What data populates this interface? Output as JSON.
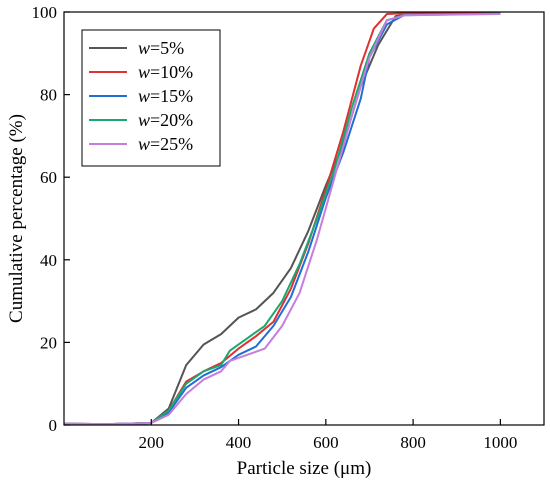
{
  "chart_data": {
    "type": "line",
    "xlabel": "Particle size (μm)",
    "ylabel": "Cumulative percentage (%)",
    "xlim": [
      0,
      1100
    ],
    "ylim": [
      0,
      100
    ],
    "x_ticks": [
      200,
      400,
      600,
      800,
      1000
    ],
    "y_ticks": [
      0,
      20,
      40,
      60,
      80,
      100
    ],
    "grid": false,
    "legend_position": "top-left",
    "series": [
      {
        "name_var": "w",
        "name_rest": "=5%",
        "color": "#555555",
        "points": [
          [
            0,
            0.3
          ],
          [
            100,
            0.2
          ],
          [
            200,
            0.5
          ],
          [
            240,
            4
          ],
          [
            280,
            14.5
          ],
          [
            320,
            19.5
          ],
          [
            360,
            22
          ],
          [
            400,
            26
          ],
          [
            440,
            28
          ],
          [
            480,
            32
          ],
          [
            520,
            38
          ],
          [
            560,
            47
          ],
          [
            600,
            58
          ],
          [
            640,
            68
          ],
          [
            680,
            82
          ],
          [
            720,
            92
          ],
          [
            760,
            99
          ],
          [
            800,
            99.6
          ],
          [
            1000,
            99.8
          ]
        ]
      },
      {
        "name_var": "w",
        "name_rest": "=10%",
        "color": "#e03030",
        "points": [
          [
            0,
            0.3
          ],
          [
            100,
            0.2
          ],
          [
            200,
            0.5
          ],
          [
            240,
            3.5
          ],
          [
            280,
            10.5
          ],
          [
            320,
            13
          ],
          [
            360,
            15
          ],
          [
            400,
            18.5
          ],
          [
            440,
            21.5
          ],
          [
            480,
            25
          ],
          [
            520,
            33
          ],
          [
            560,
            44
          ],
          [
            600,
            57
          ],
          [
            640,
            71
          ],
          [
            680,
            87
          ],
          [
            710,
            96
          ],
          [
            740,
            99.5
          ],
          [
            800,
            99.8
          ],
          [
            1000,
            99.8
          ]
        ]
      },
      {
        "name_var": "w",
        "name_rest": "=15%",
        "color": "#1f6fd6",
        "points": [
          [
            0,
            0.3
          ],
          [
            100,
            0.2
          ],
          [
            200,
            0.5
          ],
          [
            240,
            3
          ],
          [
            280,
            9
          ],
          [
            320,
            12
          ],
          [
            360,
            14
          ],
          [
            400,
            17
          ],
          [
            440,
            19
          ],
          [
            480,
            24
          ],
          [
            520,
            31
          ],
          [
            560,
            42
          ],
          [
            600,
            55
          ],
          [
            640,
            66
          ],
          [
            680,
            79
          ],
          [
            700,
            89
          ],
          [
            740,
            97
          ],
          [
            780,
            99.3
          ],
          [
            1000,
            99.6
          ]
        ]
      },
      {
        "name_var": "w",
        "name_rest": "=20%",
        "color": "#1aa870",
        "points": [
          [
            0,
            0.3
          ],
          [
            100,
            0.2
          ],
          [
            200,
            0.5
          ],
          [
            240,
            3.5
          ],
          [
            280,
            10
          ],
          [
            320,
            13
          ],
          [
            360,
            14.5
          ],
          [
            380,
            18
          ],
          [
            420,
            21
          ],
          [
            460,
            24
          ],
          [
            500,
            30
          ],
          [
            540,
            39
          ],
          [
            580,
            50
          ],
          [
            620,
            62
          ],
          [
            660,
            77
          ],
          [
            700,
            90
          ],
          [
            740,
            98
          ],
          [
            780,
            99.2
          ],
          [
            1000,
            99.6
          ]
        ]
      },
      {
        "name_var": "w",
        "name_rest": "=25%",
        "color": "#c77dde",
        "points": [
          [
            0,
            0.3
          ],
          [
            100,
            0.2
          ],
          [
            200,
            0.5
          ],
          [
            240,
            2.5
          ],
          [
            280,
            7.5
          ],
          [
            320,
            11
          ],
          [
            360,
            13
          ],
          [
            380,
            15.5
          ],
          [
            420,
            17
          ],
          [
            460,
            18.5
          ],
          [
            500,
            24
          ],
          [
            540,
            32
          ],
          [
            580,
            45
          ],
          [
            620,
            60
          ],
          [
            660,
            75
          ],
          [
            700,
            89
          ],
          [
            740,
            98
          ],
          [
            780,
            99.2
          ],
          [
            1000,
            99.5
          ]
        ]
      }
    ]
  }
}
